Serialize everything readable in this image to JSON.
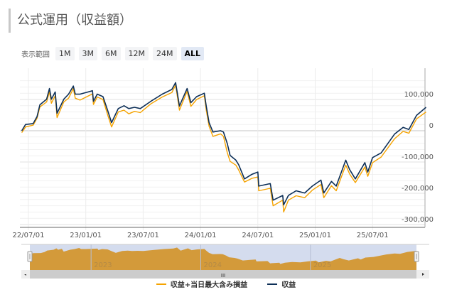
{
  "title": "公式運用（収益額）",
  "range_selector": {
    "label": "表示範囲",
    "buttons": [
      "1M",
      "3M",
      "6M",
      "12M",
      "24M",
      "ALL"
    ],
    "selected": "ALL"
  },
  "navigator": {
    "year_labels": [
      {
        "label": "2023",
        "month": 6
      },
      {
        "label": "2024",
        "month": 18
      },
      {
        "label": "2025",
        "month": 30
      }
    ],
    "scroll_grip": "III"
  },
  "colors": {
    "orange": "#f5a300",
    "navy": "#0d2f57",
    "nav_fill": "#d39a3a",
    "nav_bg": "#d4dcee"
  },
  "chart_data": {
    "type": "line",
    "title": "公式運用（収益額）",
    "x_unit": "months since 2022-07-01",
    "x_ticks": [
      {
        "label": "22/07/01",
        "month": 0
      },
      {
        "label": "23/01/01",
        "month": 6
      },
      {
        "label": "23/07/01",
        "month": 12
      },
      {
        "label": "24/01/01",
        "month": 18
      },
      {
        "label": "24/07/01",
        "month": 24
      },
      {
        "label": "25/01/01",
        "month": 30
      },
      {
        "label": "25/07/01",
        "month": 36
      }
    ],
    "y_ticks": [
      {
        "label": "100,000",
        "value": 100
      },
      {
        "label": "0",
        "value": 0
      },
      {
        "label": "-100,000",
        "value": -100
      },
      {
        "label": "-200,000",
        "value": -200
      },
      {
        "label": "-300,000",
        "value": -300
      }
    ],
    "ylim": [
      -320,
      170
    ],
    "y_unit": "thousand yen",
    "legend": [
      "収益+当日最大含み損益",
      "収益"
    ],
    "x": [
      -0.7,
      -0.3,
      0.5,
      0.9,
      1.2,
      1.9,
      2.2,
      2.4,
      2.8,
      3.0,
      3.7,
      4.2,
      4.7,
      4.9,
      5.4,
      6.7,
      6.8,
      7.2,
      7.8,
      8.3,
      8.7,
      9.4,
      10.0,
      10.5,
      11.1,
      11.7,
      12.8,
      14.0,
      15.0,
      15.4,
      15.8,
      16.6,
      17.0,
      17.6,
      18.4,
      18.6,
      18.9,
      19.3,
      20.1,
      20.4,
      20.8,
      21.1,
      21.7,
      22.0,
      22.6,
      23.4,
      24.0,
      24.1,
      25.3,
      25.6,
      26.6,
      26.7,
      27.2,
      28.0,
      28.9,
      29.7,
      30.6,
      30.9,
      31.7,
      32.2,
      33.2,
      33.6,
      34.2,
      35.2,
      35.5,
      36.0,
      36.9,
      38.3,
      39.2,
      39.8,
      40.6,
      41.6
    ],
    "series": [
      {
        "name": "収益+当日最大含み損益",
        "values": [
          -6,
          12,
          18,
          40,
          76,
          92,
          125,
          88,
          112,
          42,
          92,
          104,
          135,
          104,
          98,
          118,
          84,
          108,
          100,
          50,
          12,
          60,
          66,
          54,
          62,
          58,
          86,
          108,
          122,
          146,
          66,
          126,
          78,
          100,
          112,
          66,
          14,
          -18,
          -10,
          -18,
          -70,
          -98,
          -110,
          -126,
          -164,
          -152,
          -148,
          -192,
          -184,
          -240,
          -222,
          -260,
          -222,
          -208,
          -214,
          -190,
          -172,
          -214,
          -176,
          -192,
          -110,
          -138,
          -166,
          -116,
          -146,
          -102,
          -84,
          -26,
          -2,
          -8,
          38,
          60
        ]
      },
      {
        "name": "収益",
        "values": [
          0,
          20,
          23,
          45,
          83,
          101,
          135,
          101,
          124,
          56,
          101,
          117,
          143,
          117,
          117,
          128,
          94,
          117,
          109,
          64,
          26,
          71,
          80,
          71,
          75,
          71,
          94,
          117,
          132,
          154,
          79,
          135,
          90,
          109,
          120,
          79,
          26,
          -4,
          0,
          -4,
          -41,
          -79,
          -94,
          -109,
          -154,
          -139,
          -132,
          -177,
          -169,
          -222,
          -207,
          -237,
          -207,
          -192,
          -199,
          -177,
          -158,
          -199,
          -162,
          -177,
          -94,
          -124,
          -154,
          -102,
          -132,
          -86,
          -71,
          -11,
          11,
          4,
          49,
          75
        ]
      }
    ]
  }
}
